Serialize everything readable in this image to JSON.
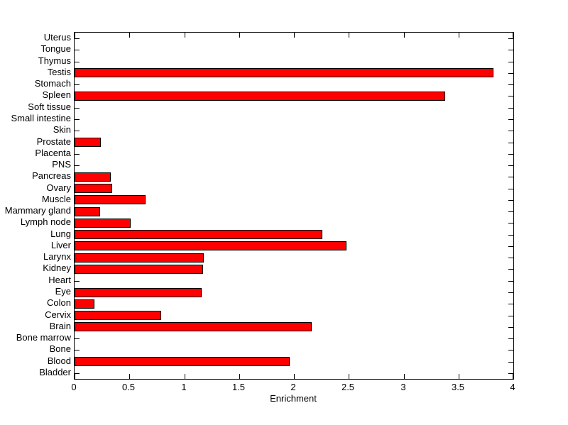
{
  "chart_data": {
    "type": "bar",
    "orientation": "horizontal",
    "title": "",
    "xlabel": "Enrichment",
    "ylabel": "",
    "xlim": [
      0,
      4
    ],
    "xticks": [
      0,
      0.5,
      1,
      1.5,
      2,
      2.5,
      3,
      3.5,
      4
    ],
    "xtick_labels": [
      "0",
      "0.5",
      "1",
      "1.5",
      "2",
      "2.5",
      "3",
      "3.5",
      "4"
    ],
    "grid": false,
    "legend": false,
    "bar_color": "#ff0000",
    "bar_border_color": "#000000",
    "axis_color": "#000000",
    "background_color": "#ffffff",
    "categories_top_to_bottom": [
      "Uterus",
      "Tongue",
      "Thymus",
      "Testis",
      "Stomach",
      "Spleen",
      "Soft tissue",
      "Small intestine",
      "Skin",
      "Prostate",
      "Placenta",
      "PNS",
      "Pancreas",
      "Ovary",
      "Muscle",
      "Mammary gland",
      "Lymph node",
      "Lung",
      "Liver",
      "Larynx",
      "Kidney",
      "Heart",
      "Eye",
      "Colon",
      "Cervix",
      "Brain",
      "Bone marrow",
      "Bone",
      "Blood",
      "Bladder"
    ],
    "values": [
      0,
      0,
      0,
      3.82,
      0,
      3.38,
      0,
      0,
      0,
      0.24,
      0,
      0,
      0.33,
      0.34,
      0.65,
      0.23,
      0.51,
      2.26,
      2.48,
      1.18,
      1.17,
      0,
      1.16,
      0.18,
      0.79,
      2.16,
      0,
      0,
      1.96,
      0
    ]
  }
}
